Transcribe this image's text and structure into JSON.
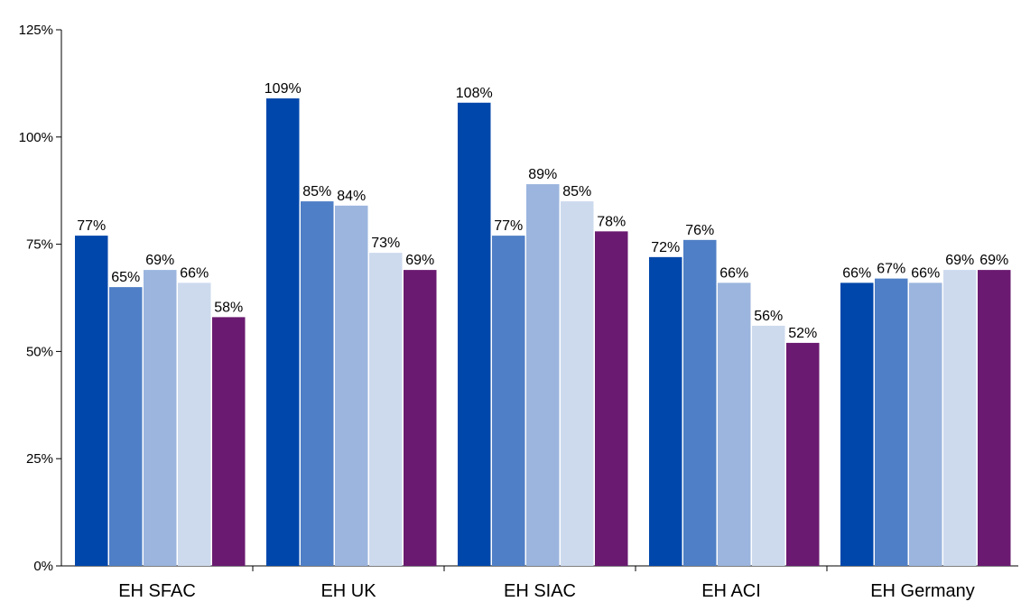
{
  "chart_data": {
    "type": "bar",
    "categories": [
      "EH SFAC",
      "EH UK",
      "EH SIAC",
      "EH ACI",
      "EH Germany"
    ],
    "series": [
      {
        "values": [
          77,
          109,
          108,
          72,
          66
        ],
        "labels": [
          "77%",
          "109%",
          "108%",
          "72%",
          "66%"
        ],
        "color": "#0047AB"
      },
      {
        "values": [
          65,
          85,
          77,
          76,
          67
        ],
        "labels": [
          "65%",
          "85%",
          "77%",
          "76%",
          "67%"
        ],
        "color": "#4F7FC6"
      },
      {
        "values": [
          69,
          84,
          89,
          66,
          66
        ],
        "labels": [
          "69%",
          "84%",
          "89%",
          "66%",
          "66%"
        ],
        "color": "#9BB5DE"
      },
      {
        "values": [
          66,
          73,
          85,
          56,
          69
        ],
        "labels": [
          "66%",
          "73%",
          "85%",
          "56%",
          "69%"
        ],
        "color": "#CDDAEE"
      },
      {
        "values": [
          58,
          69,
          78,
          52,
          69
        ],
        "labels": [
          "58%",
          "69%",
          "78%",
          "52%",
          "69%"
        ],
        "color": "#6A1A70"
      }
    ],
    "y_ticks": [
      {
        "value": 0,
        "label": "0%"
      },
      {
        "value": 25,
        "label": "25%"
      },
      {
        "value": 50,
        "label": "50%"
      },
      {
        "value": 75,
        "label": "75%"
      },
      {
        "value": 100,
        "label": "100%"
      },
      {
        "value": 125,
        "label": "125%"
      }
    ],
    "ylim": [
      0,
      125
    ],
    "title": "",
    "xlabel": "",
    "ylabel": "",
    "grid": false,
    "legend": "none",
    "axis_color": "#000000"
  }
}
